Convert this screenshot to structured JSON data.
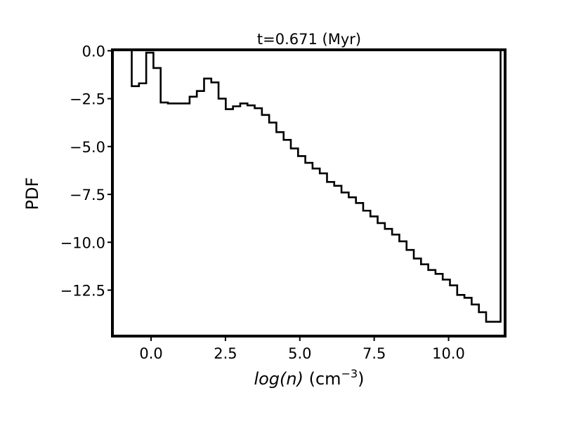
{
  "chart_data": {
    "type": "step",
    "title": "t=0.671 (Myr)",
    "xlabel_math": "log(n)",
    "xlabel_unit": " (cm",
    "xlabel_exp": "−3",
    "xlabel_close": ")",
    "ylabel": "PDF",
    "xlim": [
      -1.3,
      11.9
    ],
    "ylim": [
      -14.9,
      0.05
    ],
    "xticks": [
      0.0,
      2.5,
      5.0,
      7.5,
      10.0
    ],
    "xtick_labels": [
      "0.0",
      "2.5",
      "5.0",
      "7.5",
      "10.0"
    ],
    "yticks": [
      0.0,
      -2.5,
      -5.0,
      -7.5,
      -10.0,
      -12.5
    ],
    "ytick_labels": [
      "0.0",
      "−2.5",
      "−5.0",
      "−7.5",
      "−10.0",
      "−12.5"
    ],
    "grid": false,
    "bins_left_edge": -0.65,
    "bin_width": 0.2431,
    "series": [
      {
        "values": [
          -1.85,
          -1.7,
          -0.1,
          -0.9,
          -2.7,
          -2.75,
          -2.75,
          -2.75,
          -2.4,
          -2.1,
          -1.45,
          -1.65,
          -2.5,
          -3.05,
          -2.9,
          -2.75,
          -2.85,
          -3.0,
          -3.35,
          -3.75,
          -4.25,
          -4.65,
          -5.1,
          -5.5,
          -5.85,
          -6.15,
          -6.4,
          -6.85,
          -7.05,
          -7.4,
          -7.65,
          -7.95,
          -8.35,
          -8.65,
          -9.0,
          -9.3,
          -9.6,
          -9.95,
          -10.4,
          -10.85,
          -11.15,
          -11.45,
          -11.65,
          -11.95,
          -12.25,
          -12.75,
          -12.9,
          -13.25,
          -13.65,
          -14.15,
          -14.15
        ]
      }
    ]
  }
}
